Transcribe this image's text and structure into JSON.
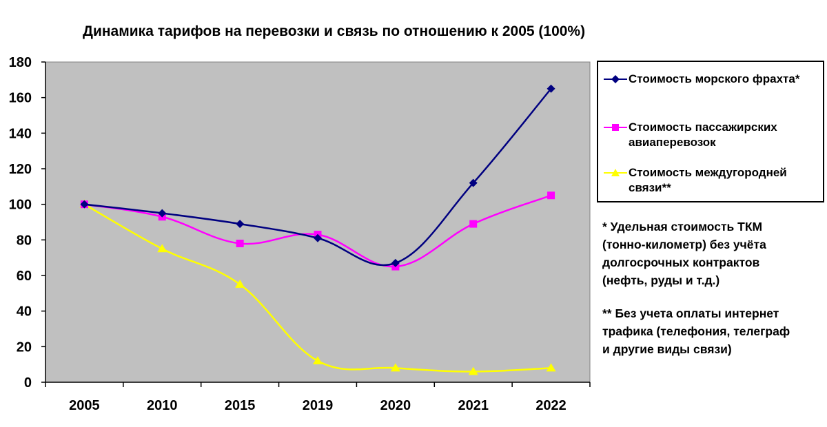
{
  "chart_data": {
    "type": "line",
    "title": "Динамика тарифов на перевозки и связь по отношению к 2005 (100%)",
    "categories": [
      "2005",
      "2010",
      "2015",
      "2019",
      "2020",
      "2021",
      "2022"
    ],
    "ylim": [
      0,
      180
    ],
    "yticks": [
      0,
      20,
      40,
      60,
      80,
      100,
      120,
      140,
      160,
      180
    ],
    "grid": false,
    "legend_position": "right",
    "plot_background": "#C0C0C0",
    "series": [
      {
        "name": "Стоимость морского фрахта*",
        "marker": "diamond",
        "color": "#000080",
        "values": [
          100,
          95,
          89,
          81,
          67,
          112,
          165
        ]
      },
      {
        "name": "Стоимость пассажирских авиаперевозок",
        "marker": "square",
        "color": "#FF00FF",
        "values": [
          100,
          93,
          78,
          83,
          65,
          89,
          105
        ]
      },
      {
        "name": "Стоимость междугородней связи**",
        "marker": "triangle",
        "color": "#FFFF00",
        "values": [
          100,
          75,
          55,
          12,
          8,
          6,
          8
        ]
      }
    ],
    "legend_lines": [
      [
        "Стоимость морского фрахта*"
      ],
      [
        "Стоимость пассажирских",
        "авиаперевозок"
      ],
      [
        "Стоимость междугородней",
        "связи**"
      ]
    ]
  },
  "notes": {
    "note1": "* Удельная стоимость ТКМ\n(тонно-километр) без учёта\nдолгосрочных контрактов\n(нефть, руды и т.д.)",
    "note2": "** Без учета оплаты интернет\nтрафика (телефония, телеграф\nи другие виды связи)"
  }
}
